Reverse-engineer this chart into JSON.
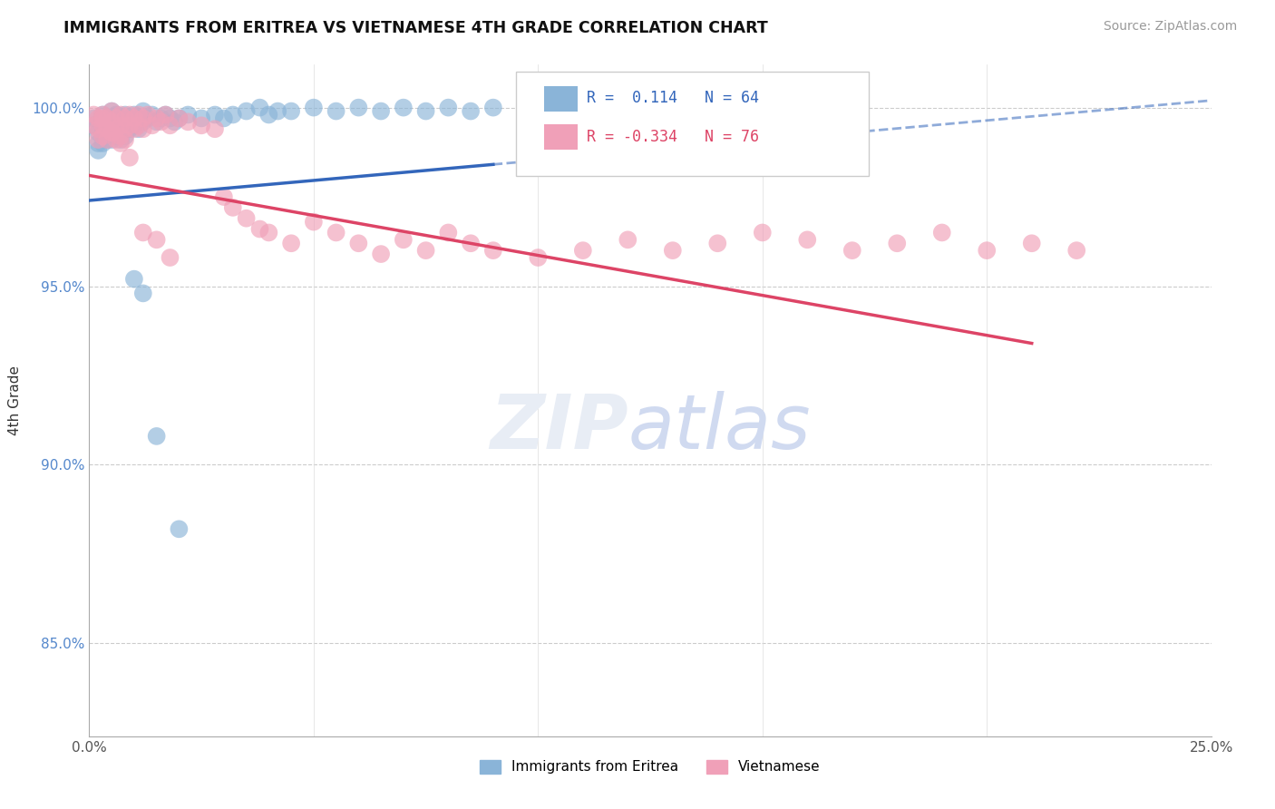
{
  "title": "IMMIGRANTS FROM ERITREA VS VIETNAMESE 4TH GRADE CORRELATION CHART",
  "source": "Source: ZipAtlas.com",
  "ylabel": "4th Grade",
  "xlim": [
    0.0,
    0.25
  ],
  "ylim": [
    0.824,
    1.012
  ],
  "yticks": [
    0.85,
    0.9,
    0.95,
    1.0
  ],
  "ytick_labels": [
    "85.0%",
    "90.0%",
    "95.0%",
    "100.0%"
  ],
  "blue_R": 0.114,
  "blue_N": 64,
  "pink_R": -0.334,
  "pink_N": 76,
  "blue_color": "#8ab4d8",
  "pink_color": "#f0a0b8",
  "blue_line_color": "#3366bb",
  "pink_line_color": "#dd4466",
  "legend_blue_label": "Immigrants from Eritrea",
  "legend_pink_label": "Vietnamese",
  "blue_line_x0": 0.0,
  "blue_line_y0": 0.974,
  "blue_line_x1": 0.25,
  "blue_line_y1": 1.002,
  "pink_line_x0": 0.0,
  "pink_line_y0": 0.981,
  "pink_line_x1": 0.21,
  "pink_line_y1": 0.934
}
